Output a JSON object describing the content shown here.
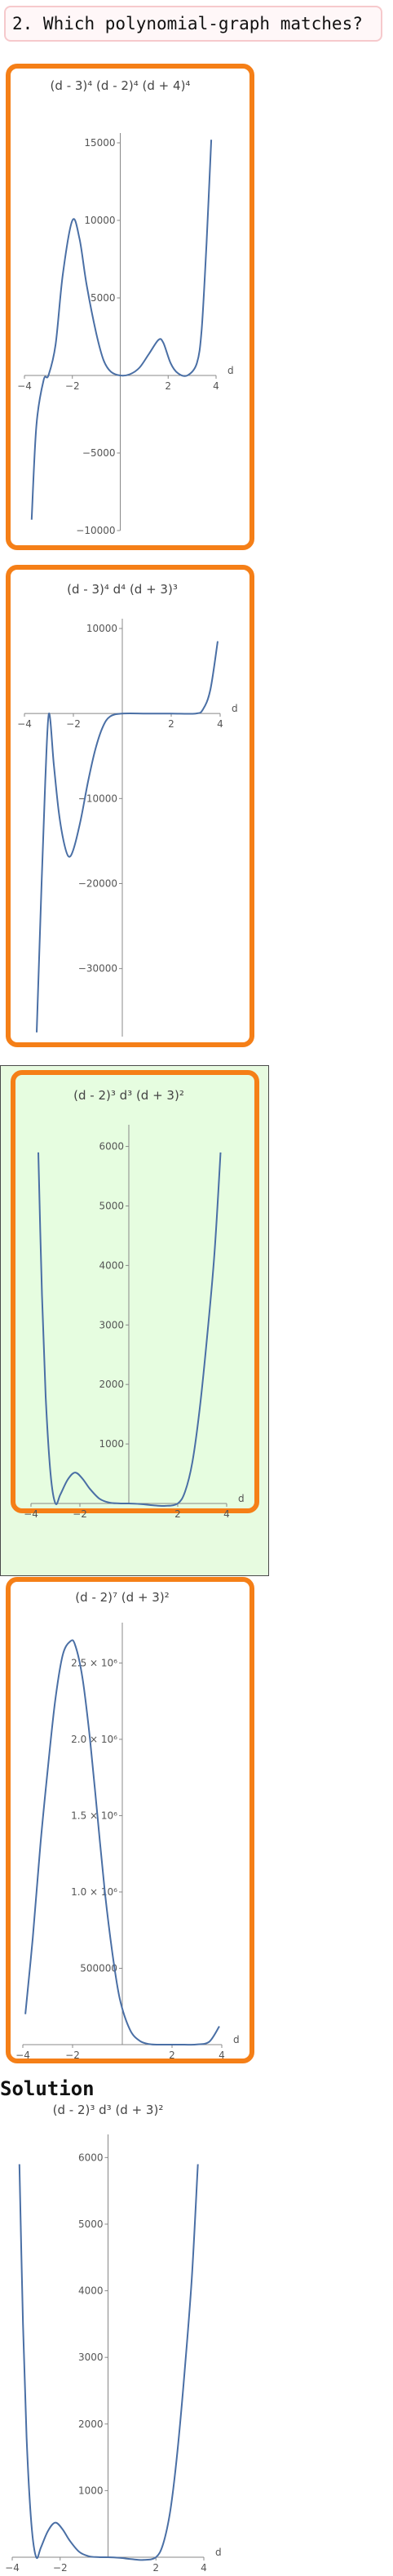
{
  "question": "2. Which polynomial-graph matches?",
  "solution_label": "Solution",
  "colors": {
    "choice_border": "#f57f17",
    "correct_bg": "#e6fde0",
    "curve": "#4a6fa5"
  },
  "chart_data": [
    {
      "type": "line",
      "title": "(d - 3)⁴ (d - 2)⁴ (d + 4)⁴",
      "xlabel": "d",
      "xlim": [
        -4,
        4
      ],
      "ylim": [
        -10000,
        15000
      ],
      "x_ticks": [
        -4,
        -2,
        2,
        4
      ],
      "y_ticks": [
        -10000,
        -5000,
        5000,
        10000,
        15000
      ],
      "y_tick_labels": [
        "−10000",
        "−5000",
        "5000",
        "10000",
        "15000"
      ],
      "x": [
        -3.7,
        -3.5,
        -3.2,
        -3.0,
        -2.7,
        -2.4,
        -2.0,
        -1.7,
        -1.4,
        -1.0,
        -0.7,
        -0.4,
        0.0,
        0.4,
        0.8,
        1.2,
        1.6,
        1.8,
        2.1,
        2.4,
        2.8,
        3.2,
        3.4,
        3.6,
        3.8
      ],
      "y": [
        -9300,
        -3200,
        -300,
        0,
        2000,
        6500,
        10000,
        8800,
        5800,
        2700,
        1000,
        250,
        0,
        80,
        500,
        1400,
        2300,
        2100,
        800,
        150,
        0,
        800,
        3000,
        8500,
        15200
      ]
    },
    {
      "type": "line",
      "title": "(d - 3)⁴ d⁴ (d + 3)³",
      "xlabel": "d",
      "xlim": [
        -4,
        4
      ],
      "ylim": [
        -38000,
        10000
      ],
      "x_ticks": [
        -4,
        -2,
        2,
        4
      ],
      "y_ticks": [
        -30000,
        -20000,
        -10000,
        10000
      ],
      "y_tick_labels": [
        "−30000",
        "−20000",
        "−10000",
        "10000"
      ],
      "x": [
        -3.5,
        -3.3,
        -3.15,
        -3.0,
        -2.8,
        -2.6,
        -2.4,
        -2.2,
        -2.0,
        -1.7,
        -1.4,
        -1.1,
        -0.8,
        -0.5,
        0.0,
        1.0,
        2.0,
        3.0,
        3.3,
        3.6,
        3.9
      ],
      "y": [
        -37500,
        -20000,
        -8000,
        0,
        -6000,
        -11500,
        -15000,
        -16800,
        -16000,
        -12500,
        -8000,
        -4200,
        -1600,
        -350,
        0,
        0,
        0,
        0,
        500,
        2800,
        8500
      ]
    },
    {
      "type": "line",
      "title": "(d - 2)³ d³ (d + 3)²",
      "xlabel": "d",
      "xlim": [
        -4,
        4
      ],
      "ylim": [
        0,
        6200
      ],
      "x_ticks": [
        -4,
        -2,
        2,
        4
      ],
      "y_ticks": [
        1000,
        2000,
        3000,
        4000,
        5000,
        6000
      ],
      "y_tick_labels": [
        "1000",
        "2000",
        "3000",
        "4000",
        "5000",
        "6000"
      ],
      "x": [
        -3.7,
        -3.55,
        -3.4,
        -3.2,
        -3.0,
        -2.8,
        -2.5,
        -2.2,
        -1.9,
        -1.6,
        -1.2,
        -0.8,
        -0.4,
        0.0,
        0.5,
        1.0,
        1.5,
        2.0,
        2.3,
        2.6,
        2.9,
        3.2,
        3.5,
        3.75
      ],
      "y": [
        5900,
        3500,
        1800,
        500,
        0,
        150,
        400,
        520,
        420,
        250,
        80,
        15,
        1,
        0,
        -10,
        -30,
        -40,
        0,
        200,
        700,
        1600,
        2800,
        4200,
        5900
      ]
    },
    {
      "type": "line",
      "title": "(d - 2)⁷ (d + 3)²",
      "xlabel": "d",
      "xlim": [
        -4,
        4
      ],
      "ylim": [
        0,
        2700000
      ],
      "x_ticks": [
        -4,
        -2,
        2,
        4
      ],
      "y_ticks": [
        500000,
        1000000,
        1500000,
        2000000,
        2500000
      ],
      "y_tick_labels": [
        "500000",
        "1.0 × 10⁶",
        "1.5 × 10⁶",
        "2.0 × 10⁶",
        "2.5 × 10⁶"
      ],
      "x": [
        -3.9,
        -3.6,
        -3.3,
        -3.0,
        -2.7,
        -2.4,
        -2.1,
        -1.9,
        -1.6,
        -1.3,
        -1.0,
        -0.7,
        -0.4,
        -0.1,
        0.3,
        0.7,
        1.1,
        1.5,
        2.0,
        2.5,
        3.0,
        3.5,
        3.9
      ],
      "y": [
        200000,
        700000,
        1300000,
        1800000,
        2250000,
        2550000,
        2640000,
        2620000,
        2400000,
        2000000,
        1500000,
        1000000,
        600000,
        300000,
        100000,
        25000,
        3000,
        0,
        0,
        0,
        1000,
        20000,
        120000
      ]
    },
    {
      "type": "line",
      "title": "(d - 2)³ d³ (d + 3)²",
      "xlabel": "d",
      "xlim": [
        -4,
        4
      ],
      "ylim": [
        0,
        6200
      ],
      "x_ticks": [
        -4,
        -2,
        2,
        4
      ],
      "y_ticks": [
        1000,
        2000,
        3000,
        4000,
        5000,
        6000
      ],
      "y_tick_labels": [
        "1000",
        "2000",
        "3000",
        "4000",
        "5000",
        "6000"
      ],
      "x": [
        -3.7,
        -3.55,
        -3.4,
        -3.2,
        -3.0,
        -2.8,
        -2.5,
        -2.2,
        -1.9,
        -1.6,
        -1.2,
        -0.8,
        -0.4,
        0.0,
        0.5,
        1.0,
        1.5,
        2.0,
        2.3,
        2.6,
        2.9,
        3.2,
        3.5,
        3.75
      ],
      "y": [
        5900,
        3500,
        1800,
        500,
        0,
        150,
        400,
        520,
        420,
        250,
        80,
        15,
        1,
        0,
        -10,
        -30,
        -40,
        0,
        200,
        700,
        1600,
        2800,
        4200,
        5900
      ]
    }
  ]
}
